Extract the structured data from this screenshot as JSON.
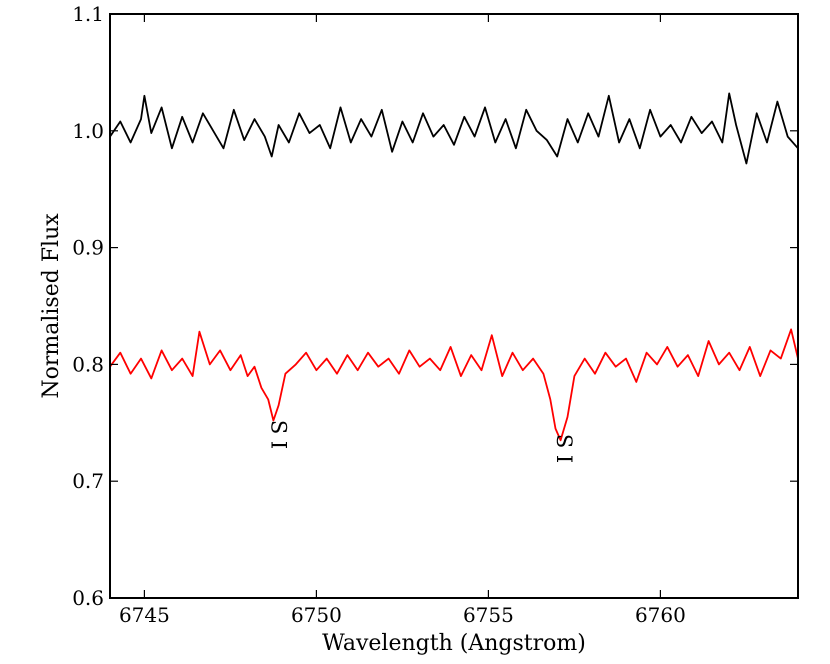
{
  "chart_data": {
    "type": "line",
    "title": "",
    "xlabel": "Wavelength (Angstrom)",
    "ylabel": "Normalised Flux",
    "xlim": [
      6744,
      6764
    ],
    "ylim": [
      0.6,
      1.1
    ],
    "grid": false,
    "x_ticks": [
      {
        "value": 6745,
        "label": "6745"
      },
      {
        "value": 6750,
        "label": "6750"
      },
      {
        "value": 6755,
        "label": "6755"
      },
      {
        "value": 6760,
        "label": "6760"
      }
    ],
    "y_ticks": [
      {
        "value": 0.6,
        "label": "0.6"
      },
      {
        "value": 0.7,
        "label": "0.7"
      },
      {
        "value": 0.8,
        "label": "0.8"
      },
      {
        "value": 0.9,
        "label": "0.9"
      },
      {
        "value": 1.0,
        "label": "1.0"
      },
      {
        "value": 1.1,
        "label": "1.1"
      }
    ],
    "series": [
      {
        "color": "#000000",
        "x": [
          6744.0,
          6744.3,
          6744.6,
          6744.9,
          6745.0,
          6745.2,
          6745.5,
          6745.8,
          6746.1,
          6746.4,
          6746.7,
          6747.0,
          6747.3,
          6747.6,
          6747.9,
          6748.2,
          6748.5,
          6748.7,
          6748.9,
          6749.2,
          6749.5,
          6749.8,
          6750.1,
          6750.4,
          6750.7,
          6751.0,
          6751.3,
          6751.6,
          6751.9,
          6752.2,
          6752.5,
          6752.8,
          6753.1,
          6753.4,
          6753.7,
          6754.0,
          6754.3,
          6754.6,
          6754.9,
          6755.2,
          6755.5,
          6755.8,
          6756.1,
          6756.4,
          6756.7,
          6757.0,
          6757.3,
          6757.6,
          6757.9,
          6758.2,
          6758.5,
          6758.8,
          6759.1,
          6759.4,
          6759.7,
          6760.0,
          6760.3,
          6760.6,
          6760.9,
          6761.2,
          6761.5,
          6761.8,
          6762.0,
          6762.2,
          6762.5,
          6762.8,
          6763.1,
          6763.4,
          6763.7,
          6764.0
        ],
        "y": [
          0.995,
          1.008,
          0.99,
          1.01,
          1.03,
          0.998,
          1.02,
          0.985,
          1.012,
          0.99,
          1.015,
          1.0,
          0.985,
          1.018,
          0.992,
          1.01,
          0.995,
          0.978,
          1.005,
          0.99,
          1.015,
          0.998,
          1.005,
          0.985,
          1.02,
          0.99,
          1.01,
          0.995,
          1.018,
          0.982,
          1.008,
          0.99,
          1.015,
          0.995,
          1.005,
          0.988,
          1.012,
          0.995,
          1.02,
          0.99,
          1.01,
          0.985,
          1.018,
          1.0,
          0.992,
          0.978,
          1.01,
          0.99,
          1.015,
          0.995,
          1.03,
          0.99,
          1.01,
          0.985,
          1.018,
          0.995,
          1.005,
          0.99,
          1.012,
          0.998,
          1.008,
          0.99,
          1.032,
          1.005,
          0.972,
          1.015,
          0.99,
          1.025,
          0.995,
          0.985
        ]
      },
      {
        "color": "#ff0000",
        "x": [
          6744.0,
          6744.3,
          6744.6,
          6744.9,
          6745.2,
          6745.5,
          6745.8,
          6746.1,
          6746.4,
          6746.6,
          6746.9,
          6747.2,
          6747.5,
          6747.8,
          6748.0,
          6748.2,
          6748.4,
          6748.6,
          6748.75,
          6748.9,
          6749.1,
          6749.4,
          6749.7,
          6750.0,
          6750.3,
          6750.6,
          6750.9,
          6751.2,
          6751.5,
          6751.8,
          6752.1,
          6752.4,
          6752.7,
          6753.0,
          6753.3,
          6753.6,
          6753.9,
          6754.2,
          6754.5,
          6754.8,
          6755.1,
          6755.4,
          6755.7,
          6756.0,
          6756.3,
          6756.6,
          6756.8,
          6756.95,
          6757.1,
          6757.3,
          6757.5,
          6757.8,
          6758.1,
          6758.4,
          6758.7,
          6759.0,
          6759.3,
          6759.6,
          6759.9,
          6760.2,
          6760.5,
          6760.8,
          6761.1,
          6761.4,
          6761.7,
          6762.0,
          6762.3,
          6762.6,
          6762.9,
          6763.2,
          6763.5,
          6763.8,
          6764.0
        ],
        "y": [
          0.798,
          0.81,
          0.792,
          0.805,
          0.788,
          0.812,
          0.795,
          0.805,
          0.79,
          0.828,
          0.8,
          0.812,
          0.795,
          0.808,
          0.79,
          0.798,
          0.78,
          0.77,
          0.752,
          0.765,
          0.792,
          0.8,
          0.81,
          0.795,
          0.805,
          0.792,
          0.808,
          0.795,
          0.81,
          0.798,
          0.805,
          0.792,
          0.812,
          0.798,
          0.805,
          0.795,
          0.815,
          0.79,
          0.808,
          0.795,
          0.825,
          0.79,
          0.81,
          0.795,
          0.805,
          0.792,
          0.77,
          0.745,
          0.735,
          0.755,
          0.79,
          0.805,
          0.792,
          0.81,
          0.798,
          0.805,
          0.785,
          0.81,
          0.8,
          0.815,
          0.798,
          0.808,
          0.79,
          0.82,
          0.8,
          0.81,
          0.795,
          0.815,
          0.79,
          0.812,
          0.805,
          0.83,
          0.805
        ]
      }
    ],
    "annotations": [
      {
        "text": "S I",
        "x": 6748.7,
        "y": 0.74,
        "rotation": 90
      },
      {
        "text": "S I",
        "x": 6757.0,
        "y": 0.728,
        "rotation": 90
      }
    ]
  }
}
